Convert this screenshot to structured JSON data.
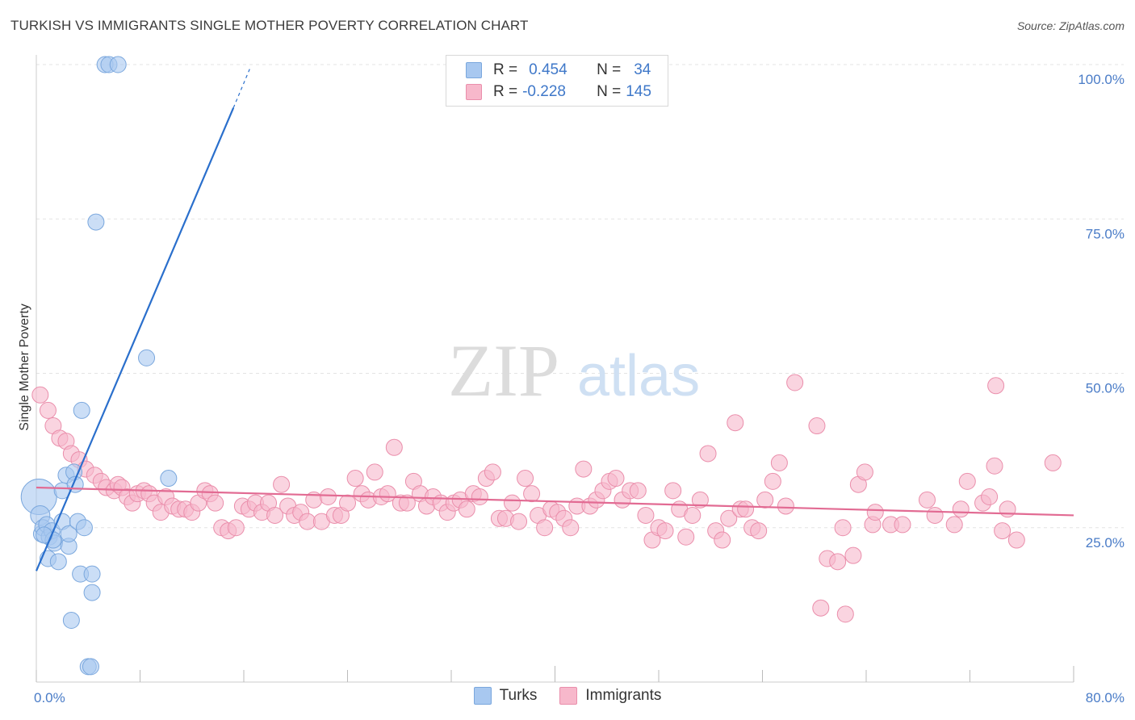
{
  "title": "TURKISH VS IMMIGRANTS SINGLE MOTHER POVERTY CORRELATION CHART",
  "source": "Source: ZipAtlas.com",
  "watermark": {
    "zip": "ZIP",
    "atlas": "atlas"
  },
  "legend": {
    "rows": [
      {
        "r_label": "R =",
        "r_value": "0.454",
        "n_label": "N =",
        "n_value": "34"
      },
      {
        "r_label": "R =",
        "r_value": "-0.228",
        "n_label": "N =",
        "n_value": "145"
      }
    ]
  },
  "bottom_legend": [
    "Turks",
    "Immigrants"
  ],
  "colors": {
    "turks_fill": "#a8c8f0",
    "turks_stroke": "#7aa7dd",
    "turks_line": "#2a6fcc",
    "immigrants_fill": "#f7b8cb",
    "immigrants_stroke": "#ea8eab",
    "immigrants_line": "#e26b93",
    "tick_text": "#4a7cc7",
    "grid": "#e3e3e3"
  },
  "chart_data": {
    "type": "scatter",
    "title": "TURKISH VS IMMIGRANTS SINGLE MOTHER POVERTY CORRELATION CHART",
    "ylabel": "Single Mother Poverty",
    "xlabel": "",
    "xlim": [
      0,
      80
    ],
    "ylim": [
      0,
      105
    ],
    "x_ticks": [
      "0.0%",
      "80.0%"
    ],
    "y_ticks": [
      {
        "value": 25,
        "label": "25.0%"
      },
      {
        "value": 50,
        "label": "50.0%"
      },
      {
        "value": 75,
        "label": "75.0%"
      },
      {
        "value": 100,
        "label": "100.0%"
      }
    ],
    "grid": true,
    "series": [
      {
        "name": "Turks",
        "trend": [
          [
            0,
            18
          ],
          [
            15.2,
            93
          ],
          [
            16.5,
            99.5
          ]
        ],
        "points": [
          [
            0.2,
            30,
            22
          ],
          [
            0.3,
            27,
            12
          ],
          [
            0.4,
            24,
            10
          ],
          [
            0.5,
            25,
            10
          ],
          [
            0.8,
            25.5,
            10
          ],
          [
            1.0,
            23.5,
            10
          ],
          [
            1.2,
            24.5,
            10
          ],
          [
            1.4,
            22.5,
            10
          ],
          [
            0.9,
            20,
            10
          ],
          [
            1.7,
            19.5,
            10
          ],
          [
            2.0,
            31,
            10
          ],
          [
            2.3,
            33.5,
            10
          ],
          [
            2.0,
            26,
            10
          ],
          [
            2.5,
            22,
            10
          ],
          [
            2.5,
            24,
            10
          ],
          [
            2.9,
            34,
            10
          ],
          [
            3.0,
            32,
            10
          ],
          [
            3.2,
            26,
            10
          ],
          [
            3.4,
            17.5,
            10
          ],
          [
            3.5,
            44,
            10
          ],
          [
            3.7,
            25,
            10
          ],
          [
            2.7,
            10,
            10
          ],
          [
            4.3,
            17.5,
            10
          ],
          [
            4.3,
            14.5,
            10
          ],
          [
            4.0,
            2.5,
            10
          ],
          [
            4.2,
            2.5,
            10
          ],
          [
            4.6,
            74.5,
            10
          ],
          [
            5.3,
            100,
            10
          ],
          [
            5.6,
            100,
            10
          ],
          [
            6.3,
            100,
            10
          ],
          [
            8.5,
            52.5,
            10
          ],
          [
            10.2,
            33,
            10
          ],
          [
            1.3,
            23,
            10
          ],
          [
            0.6,
            23.8,
            10
          ]
        ]
      },
      {
        "name": "Immigrants",
        "trend": [
          [
            0,
            31.5
          ],
          [
            80,
            27
          ]
        ],
        "points": [
          [
            0.3,
            46.5,
            10
          ],
          [
            0.9,
            44,
            10
          ],
          [
            1.3,
            41.5,
            10
          ],
          [
            1.8,
            39.5,
            10
          ],
          [
            2.3,
            39,
            10
          ],
          [
            2.7,
            37,
            10
          ],
          [
            3.3,
            36,
            10
          ],
          [
            3.8,
            34.5,
            10
          ],
          [
            4.5,
            33.5,
            10
          ],
          [
            5.0,
            32.5,
            10
          ],
          [
            5.4,
            31.5,
            10
          ],
          [
            6.0,
            31,
            10
          ],
          [
            6.3,
            32,
            10
          ],
          [
            6.6,
            31.5,
            10
          ],
          [
            7.0,
            30,
            10
          ],
          [
            7.4,
            29,
            10
          ],
          [
            7.8,
            30.5,
            10
          ],
          [
            8.3,
            31,
            10
          ],
          [
            8.7,
            30.5,
            10
          ],
          [
            9.1,
            29,
            10
          ],
          [
            9.6,
            27.5,
            10
          ],
          [
            10.0,
            30,
            10
          ],
          [
            10.5,
            28.5,
            10
          ],
          [
            11.0,
            28,
            10
          ],
          [
            11.5,
            28,
            10
          ],
          [
            12.0,
            27.5,
            10
          ],
          [
            12.5,
            29,
            10
          ],
          [
            13.0,
            31,
            10
          ],
          [
            13.4,
            30.5,
            10
          ],
          [
            13.8,
            29,
            10
          ],
          [
            14.3,
            25,
            10
          ],
          [
            14.8,
            24.5,
            10
          ],
          [
            15.4,
            25,
            10
          ],
          [
            15.9,
            28.5,
            10
          ],
          [
            16.4,
            28,
            10
          ],
          [
            16.9,
            29,
            10
          ],
          [
            17.4,
            27.5,
            10
          ],
          [
            17.9,
            29,
            10
          ],
          [
            18.4,
            27,
            10
          ],
          [
            18.9,
            32,
            10
          ],
          [
            19.4,
            28.5,
            10
          ],
          [
            19.9,
            27,
            10
          ],
          [
            20.4,
            27.5,
            10
          ],
          [
            20.9,
            26,
            10
          ],
          [
            21.4,
            29.5,
            10
          ],
          [
            22.0,
            26,
            10
          ],
          [
            22.5,
            30,
            10
          ],
          [
            23.0,
            27,
            10
          ],
          [
            23.5,
            27,
            10
          ],
          [
            24.0,
            29,
            10
          ],
          [
            24.6,
            33,
            10
          ],
          [
            25.1,
            30.5,
            10
          ],
          [
            25.6,
            29.5,
            10
          ],
          [
            26.1,
            34,
            10
          ],
          [
            26.6,
            30,
            10
          ],
          [
            27.1,
            30.5,
            10
          ],
          [
            27.6,
            38,
            10
          ],
          [
            28.1,
            29,
            10
          ],
          [
            28.6,
            29,
            10
          ],
          [
            29.1,
            32.5,
            10
          ],
          [
            29.6,
            30.5,
            10
          ],
          [
            30.1,
            28.5,
            10
          ],
          [
            30.6,
            30,
            10
          ],
          [
            31.2,
            29,
            10
          ],
          [
            31.7,
            27.5,
            10
          ],
          [
            32.2,
            29,
            10
          ],
          [
            32.7,
            29.5,
            10
          ],
          [
            33.2,
            28,
            10
          ],
          [
            33.7,
            30.5,
            10
          ],
          [
            34.2,
            30,
            10
          ],
          [
            34.7,
            33,
            10
          ],
          [
            35.2,
            34,
            10
          ],
          [
            35.7,
            26.5,
            10
          ],
          [
            36.2,
            26.5,
            10
          ],
          [
            36.7,
            29,
            10
          ],
          [
            37.2,
            26,
            10
          ],
          [
            37.7,
            33,
            10
          ],
          [
            38.2,
            30.5,
            10
          ],
          [
            38.7,
            27,
            10
          ],
          [
            39.2,
            25,
            10
          ],
          [
            39.7,
            28,
            10
          ],
          [
            40.2,
            27.5,
            10
          ],
          [
            40.7,
            26.5,
            10
          ],
          [
            41.2,
            25,
            10
          ],
          [
            41.7,
            28.5,
            10
          ],
          [
            42.2,
            34.5,
            10
          ],
          [
            42.7,
            28.5,
            10
          ],
          [
            43.2,
            29.5,
            10
          ],
          [
            43.7,
            31,
            10
          ],
          [
            44.2,
            32.5,
            10
          ],
          [
            44.7,
            33,
            10
          ],
          [
            45.2,
            29.5,
            10
          ],
          [
            45.8,
            31,
            10
          ],
          [
            46.4,
            31,
            10
          ],
          [
            47.0,
            27,
            10
          ],
          [
            47.5,
            23,
            10
          ],
          [
            48.0,
            25,
            10
          ],
          [
            48.5,
            24.5,
            10
          ],
          [
            49.1,
            31,
            10
          ],
          [
            49.6,
            28,
            10
          ],
          [
            50.1,
            23.5,
            10
          ],
          [
            50.6,
            27,
            10
          ],
          [
            51.2,
            29.5,
            10
          ],
          [
            51.8,
            37,
            10
          ],
          [
            52.4,
            24.5,
            10
          ],
          [
            52.9,
            23,
            10
          ],
          [
            53.4,
            26.5,
            10
          ],
          [
            53.9,
            42,
            10
          ],
          [
            54.3,
            28,
            10
          ],
          [
            54.7,
            28,
            10
          ],
          [
            55.2,
            25,
            10
          ],
          [
            55.7,
            24.5,
            10
          ],
          [
            56.2,
            29.5,
            10
          ],
          [
            56.8,
            32.5,
            10
          ],
          [
            57.3,
            35.5,
            10
          ],
          [
            57.8,
            28.5,
            10
          ],
          [
            58.5,
            48.5,
            10
          ],
          [
            60.2,
            41.5,
            10
          ],
          [
            60.5,
            12,
            10
          ],
          [
            61.0,
            20,
            10
          ],
          [
            61.8,
            19.5,
            10
          ],
          [
            62.2,
            25,
            10
          ],
          [
            62.4,
            11,
            10
          ],
          [
            63.0,
            20.5,
            10
          ],
          [
            63.4,
            32,
            10
          ],
          [
            63.9,
            34,
            10
          ],
          [
            64.5,
            25.5,
            10
          ],
          [
            64.7,
            27.5,
            10
          ],
          [
            65.9,
            25.5,
            10
          ],
          [
            66.8,
            25.5,
            10
          ],
          [
            68.7,
            29.5,
            10
          ],
          [
            69.3,
            27,
            10
          ],
          [
            70.8,
            25.5,
            10
          ],
          [
            71.3,
            28,
            10
          ],
          [
            71.8,
            32.5,
            10
          ],
          [
            73.0,
            29,
            10
          ],
          [
            73.5,
            30,
            10
          ],
          [
            73.9,
            35,
            10
          ],
          [
            74.0,
            48,
            10
          ],
          [
            74.5,
            24.5,
            10
          ],
          [
            74.9,
            28,
            10
          ],
          [
            75.6,
            23,
            10
          ],
          [
            78.4,
            35.5,
            10
          ]
        ]
      }
    ]
  }
}
